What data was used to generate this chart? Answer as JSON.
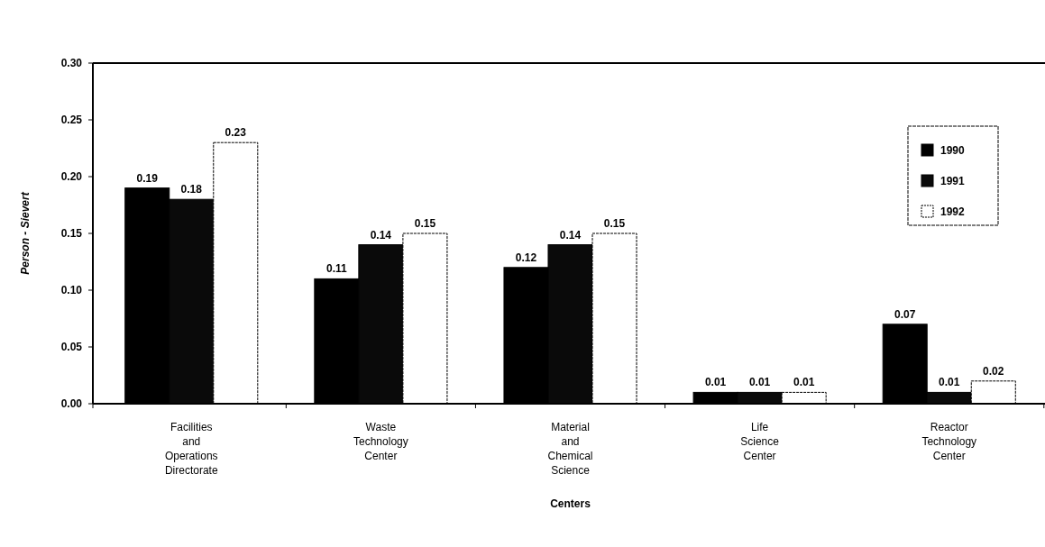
{
  "chart_data": {
    "type": "bar",
    "xlabel": "Centers",
    "ylabel": "Person - Sievert",
    "categories": [
      "Facilities and Operations Directorate",
      "Waste Technology Center",
      "Material and Chemical Science",
      "Life Science Center",
      "Reactor Technology Center"
    ],
    "series": [
      {
        "name": "1990",
        "color": "#000000",
        "values": [
          0.19,
          0.11,
          0.12,
          0.01,
          0.07
        ]
      },
      {
        "name": "1991",
        "color": "#0a0a0a",
        "values": [
          0.18,
          0.14,
          0.14,
          0.01,
          0.01
        ]
      },
      {
        "name": "1992",
        "color": "#ffffff",
        "values": [
          0.23,
          0.15,
          0.15,
          0.01,
          0.02
        ]
      }
    ],
    "ylim": [
      0,
      0.3
    ],
    "yticks": [
      {
        "value": 0,
        "label": "0.00"
      },
      {
        "value": 0.05,
        "label": "0.05"
      },
      {
        "value": 0.1,
        "label": "0.10"
      },
      {
        "value": 0.15,
        "label": "0.15"
      },
      {
        "value": 0.2,
        "label": "0.20"
      },
      {
        "value": 0.25,
        "label": "0.25"
      },
      {
        "value": 0.3,
        "label": "0.30"
      }
    ],
    "data_labels": true,
    "legend": "top right",
    "grid": false
  }
}
